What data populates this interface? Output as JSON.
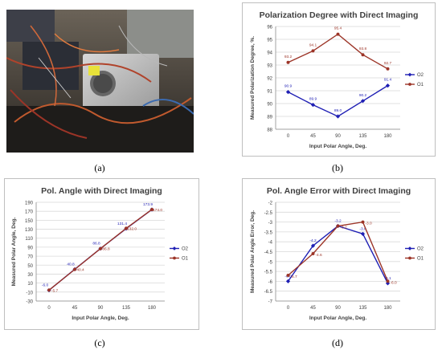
{
  "captions": [
    "(a)",
    "(b)",
    "(c)",
    "(d)"
  ],
  "photo": {
    "subject": "lab-equipment-photo"
  },
  "colors": {
    "o2": "#1f1fb4",
    "o1": "#9c3427",
    "grid": "#d9d9d9",
    "frame": "#bfbfbf"
  },
  "chart_data": [
    {
      "type": "line",
      "title": "Polarization Degree with Direct Imaging",
      "xlabel": "Input Polar Angle, Deg.",
      "ylabel": "Measured Polarization Degree, %.",
      "categories": [
        "0",
        "45",
        "90",
        "135",
        "180"
      ],
      "ylim": [
        88,
        96
      ],
      "yticks": [
        "88",
        "89",
        "90",
        "91",
        "92",
        "93",
        "94",
        "95",
        "96"
      ],
      "grid": true,
      "legend": "right",
      "series": [
        {
          "name": "O2",
          "values": [
            90.9,
            89.9,
            89.0,
            90.2,
            91.4
          ],
          "labels": [
            "90.9",
            "89.9",
            "89.0",
            "90.2",
            "91.4"
          ]
        },
        {
          "name": "O1",
          "values": [
            93.2,
            94.1,
            95.4,
            93.8,
            92.7
          ],
          "labels": [
            "93.2",
            "94.1",
            "95.4",
            "93.8",
            "92.7"
          ]
        }
      ]
    },
    {
      "type": "line",
      "title": "Pol. Angle with Direct Imaging",
      "xlabel": "Input Polar Angle, Deg.",
      "ylabel": "Measured Polar Angle, Deg.",
      "categories": [
        "0",
        "45",
        "90",
        "135",
        "180"
      ],
      "ylim": [
        -30,
        190
      ],
      "yticks": [
        "-30",
        "-10",
        "10",
        "30",
        "50",
        "70",
        "90",
        "110",
        "130",
        "150",
        "170",
        "190"
      ],
      "grid": true,
      "legend": "right",
      "series": [
        {
          "name": "O2",
          "values": [
            -6.0,
            40.8,
            86.8,
            131.4,
            173.9
          ],
          "labels": [
            "-6.0",
            "40.8",
            "86.8",
            "131.4",
            "173.9"
          ]
        },
        {
          "name": "O1",
          "values": [
            -5.7,
            40.4,
            86.8,
            132.0,
            174.0
          ],
          "labels": [
            "-5.7",
            "40.4",
            "86.8",
            "132.0",
            "174.0"
          ]
        }
      ]
    },
    {
      "type": "line",
      "title": "Pol. Angle Error with Direct Imaging",
      "xlabel": "Input Polar Angle, Deg.",
      "ylabel": "Measured Polar Angle Error, Deg.",
      "categories": [
        "0",
        "45",
        "90",
        "135",
        "180"
      ],
      "ylim": [
        -7,
        -2
      ],
      "yticks": [
        "-7",
        "-6.5",
        "-6",
        "-5.5",
        "-5",
        "-4.5",
        "-4",
        "-3.5",
        "-3",
        "-2.5",
        "-2"
      ],
      "grid": true,
      "legend": "right",
      "series": [
        {
          "name": "O2",
          "values": [
            -6.0,
            -4.2,
            -3.2,
            -3.6,
            -6.1
          ],
          "labels": [
            "-6.0",
            "-4.2",
            "-3.2",
            "-3.6",
            "-6.1"
          ]
        },
        {
          "name": "O1",
          "values": [
            -5.7,
            -4.6,
            -3.2,
            -3.0,
            -6.0
          ],
          "labels": [
            "-5.7",
            "-4.6",
            "-3.2",
            "-3.0",
            "-6.0"
          ]
        }
      ]
    }
  ]
}
